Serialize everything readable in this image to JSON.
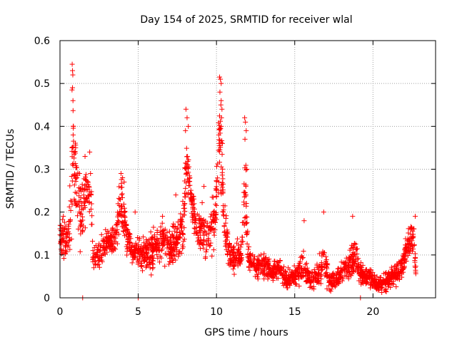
{
  "chart_data": {
    "type": "scatter",
    "title": "Day 154 of 2025, SRMTID for receiver wlal",
    "xlabel": "GPS time / hours",
    "ylabel": "SRMTID / TECUs",
    "xlim": [
      0,
      24
    ],
    "ylim": [
      0,
      0.6
    ],
    "xticks": [
      0,
      5,
      10,
      15,
      20
    ],
    "yticks": [
      0,
      0.1,
      0.2,
      0.3,
      0.4,
      0.5,
      0.6
    ],
    "xtick_labels": [
      "0",
      "5",
      "10",
      "15",
      "20"
    ],
    "ytick_labels": [
      "0",
      "0.1",
      "0.2",
      "0.3",
      "0.4",
      "0.5",
      "0.6"
    ],
    "grid": true,
    "marker": "+",
    "color": "#ff0000",
    "profile": [
      [
        0.0,
        0.15,
        0.04
      ],
      [
        0.3,
        0.14,
        0.04
      ],
      [
        0.5,
        0.12,
        0.05
      ],
      [
        0.7,
        0.2,
        0.08
      ],
      [
        0.85,
        0.35,
        0.12
      ],
      [
        0.95,
        0.3,
        0.1
      ],
      [
        1.1,
        0.24,
        0.08
      ],
      [
        1.3,
        0.2,
        0.08
      ],
      [
        1.5,
        0.22,
        0.07
      ],
      [
        1.8,
        0.26,
        0.06
      ],
      [
        2.0,
        0.22,
        0.08
      ],
      [
        2.1,
        0.09,
        0.02
      ],
      [
        2.5,
        0.1,
        0.03
      ],
      [
        3.0,
        0.13,
        0.03
      ],
      [
        3.5,
        0.13,
        0.03
      ],
      [
        3.9,
        0.22,
        0.06
      ],
      [
        4.2,
        0.16,
        0.04
      ],
      [
        4.6,
        0.1,
        0.02
      ],
      [
        5.0,
        0.11,
        0.03
      ],
      [
        5.5,
        0.1,
        0.03
      ],
      [
        6.0,
        0.12,
        0.04
      ],
      [
        6.5,
        0.13,
        0.04
      ],
      [
        7.0,
        0.12,
        0.04
      ],
      [
        7.5,
        0.14,
        0.05
      ],
      [
        7.9,
        0.17,
        0.05
      ],
      [
        8.1,
        0.32,
        0.06
      ],
      [
        8.3,
        0.26,
        0.03
      ],
      [
        8.6,
        0.18,
        0.05
      ],
      [
        9.0,
        0.16,
        0.05
      ],
      [
        9.5,
        0.14,
        0.05
      ],
      [
        9.9,
        0.18,
        0.06
      ],
      [
        10.2,
        0.38,
        0.1
      ],
      [
        10.5,
        0.17,
        0.05
      ],
      [
        10.8,
        0.1,
        0.03
      ],
      [
        11.2,
        0.09,
        0.03
      ],
      [
        11.6,
        0.1,
        0.03
      ],
      [
        11.85,
        0.28,
        0.1
      ],
      [
        12.0,
        0.1,
        0.03
      ],
      [
        12.5,
        0.07,
        0.02
      ],
      [
        13.0,
        0.08,
        0.03
      ],
      [
        13.5,
        0.06,
        0.02
      ],
      [
        14.0,
        0.07,
        0.02
      ],
      [
        14.5,
        0.04,
        0.02
      ],
      [
        15.0,
        0.05,
        0.02
      ],
      [
        15.5,
        0.07,
        0.03
      ],
      [
        16.0,
        0.04,
        0.02
      ],
      [
        16.5,
        0.05,
        0.02
      ],
      [
        16.8,
        0.1,
        0.05
      ],
      [
        17.2,
        0.04,
        0.02
      ],
      [
        17.6,
        0.04,
        0.02
      ],
      [
        18.0,
        0.06,
        0.02
      ],
      [
        18.5,
        0.08,
        0.03
      ],
      [
        18.9,
        0.1,
        0.04
      ],
      [
        19.3,
        0.05,
        0.02
      ],
      [
        19.8,
        0.05,
        0.02
      ],
      [
        20.3,
        0.03,
        0.015
      ],
      [
        20.8,
        0.04,
        0.02
      ],
      [
        21.3,
        0.05,
        0.02
      ],
      [
        21.8,
        0.07,
        0.03
      ],
      [
        22.2,
        0.12,
        0.03
      ],
      [
        22.6,
        0.14,
        0.04
      ],
      [
        22.75,
        0.06,
        0.02
      ]
    ],
    "peaks": [
      [
        0.78,
        0.545
      ],
      [
        0.8,
        0.53
      ],
      [
        0.82,
        0.52
      ],
      [
        0.8,
        0.49
      ],
      [
        0.77,
        0.485
      ],
      [
        0.83,
        0.46
      ],
      [
        0.85,
        0.4
      ],
      [
        0.84,
        0.38
      ],
      [
        0.9,
        0.34
      ],
      [
        1.6,
        0.33
      ],
      [
        1.9,
        0.34
      ],
      [
        3.9,
        0.29
      ],
      [
        4.0,
        0.28
      ],
      [
        4.1,
        0.27
      ],
      [
        8.05,
        0.44
      ],
      [
        8.12,
        0.42
      ],
      [
        8.2,
        0.4
      ],
      [
        8.02,
        0.39
      ],
      [
        8.15,
        0.33
      ],
      [
        8.3,
        0.28
      ],
      [
        10.2,
        0.515
      ],
      [
        10.25,
        0.51
      ],
      [
        10.3,
        0.5
      ],
      [
        10.22,
        0.48
      ],
      [
        10.3,
        0.46
      ],
      [
        10.28,
        0.45
      ],
      [
        10.35,
        0.44
      ],
      [
        10.32,
        0.42
      ],
      [
        10.3,
        0.4
      ],
      [
        10.38,
        0.36
      ],
      [
        10.15,
        0.38
      ],
      [
        11.8,
        0.42
      ],
      [
        11.85,
        0.41
      ],
      [
        11.9,
        0.39
      ],
      [
        11.82,
        0.37
      ],
      [
        11.95,
        0.3
      ],
      [
        11.88,
        0.26
      ],
      [
        16.85,
        0.2
      ],
      [
        18.7,
        0.19
      ],
      [
        15.6,
        0.18
      ],
      [
        22.7,
        0.19
      ],
      [
        4.8,
        0.2
      ],
      [
        7.4,
        0.24
      ],
      [
        9.2,
        0.26
      ]
    ],
    "outliers": [
      [
        1.45,
        0.0
      ],
      [
        5.0,
        0.0
      ],
      [
        19.2,
        0.0
      ]
    ]
  }
}
